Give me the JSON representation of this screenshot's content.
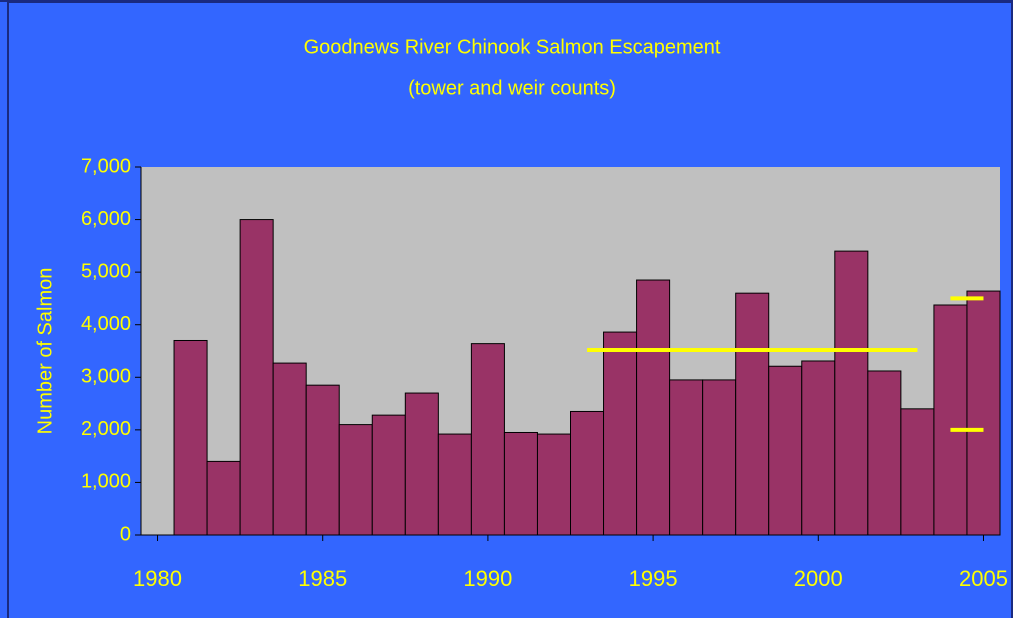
{
  "chart_data": {
    "type": "bar",
    "title": "Goodnews River Chinook Salmon Escapement",
    "subtitle": "(tower and weir counts)",
    "y_label": "Number of Salmon",
    "x": [
      1981,
      1982,
      1983,
      1984,
      1985,
      1986,
      1987,
      1988,
      1989,
      1990,
      1991,
      1992,
      1993,
      1994,
      1995,
      1996,
      1997,
      1998,
      1999,
      2000,
      2001,
      2002,
      2003,
      2004,
      2005
    ],
    "values": [
      3700,
      1400,
      6000,
      3270,
      2850,
      2100,
      2280,
      2700,
      1920,
      3640,
      1950,
      1920,
      2350,
      3860,
      4850,
      2950,
      2950,
      4600,
      3210,
      3310,
      5400,
      3120,
      2400,
      4375,
      4640
    ],
    "color": "#993366",
    "goal_lines": [
      {
        "x": [
          1993,
          2003
        ],
        "y": 3520
      },
      {
        "x": [
          2004,
          2005
        ],
        "y": 4500
      },
      {
        "x": [
          2004,
          2005
        ],
        "y": 2000
      }
    ],
    "goal_color": "#ffff00",
    "xlim": [
      1979.5,
      2005.5
    ],
    "xticks": [
      1980,
      1985,
      1990,
      1995,
      2000,
      2005
    ],
    "ylim": [
      0,
      7000
    ],
    "yticks": [
      0,
      {
        "value": 1000,
        "label": "1,000"
      },
      {
        "value": 2000,
        "label": "2,000"
      },
      {
        "value": 3000,
        "label": "3,000"
      },
      {
        "value": 4000,
        "label": "4,000"
      },
      {
        "value": 5000,
        "label": "5,000"
      },
      {
        "value": 6000,
        "label": "6,000"
      },
      {
        "value": 7000,
        "label": "7,000"
      }
    ],
    "plot_background": "#c0c0c0"
  }
}
